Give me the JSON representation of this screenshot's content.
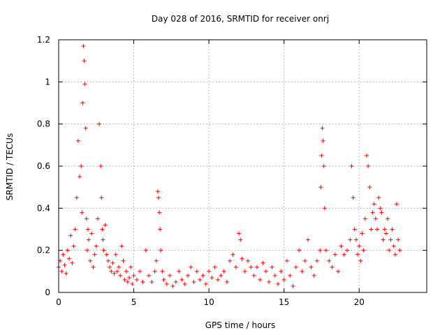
{
  "chart_data": {
    "type": "scatter",
    "title": "Day 028 of 2016, SRMTID for receiver onrj",
    "xlabel": "GPS time / hours",
    "ylabel": "SRMTID / TECUs",
    "xlim": [
      0,
      24.5
    ],
    "ylim": [
      0,
      1.2
    ],
    "x_ticks": [
      "0",
      "5",
      "10",
      "15",
      "20"
    ],
    "x_tick_values": [
      0,
      5,
      10,
      15,
      20
    ],
    "y_ticks": [
      "0",
      "0.2",
      "0.4",
      "0.6",
      "0.8",
      "1",
      "1.2"
    ],
    "y_tick_values": [
      0,
      0.2,
      0.4,
      0.6,
      0.8,
      1.0,
      1.2
    ],
    "grid": true,
    "marker": "+",
    "color": "#ff0000",
    "series": [
      {
        "name": "SRMTID",
        "x": [
          0.0,
          0.1,
          0.2,
          0.3,
          0.4,
          0.5,
          0.6,
          0.7,
          0.8,
          0.9,
          1.0,
          1.1,
          1.2,
          1.3,
          1.4,
          1.5,
          1.55,
          1.6,
          1.65,
          1.7,
          1.75,
          1.8,
          1.85,
          1.9,
          1.95,
          2.0,
          2.1,
          2.2,
          2.3,
          2.4,
          2.5,
          2.6,
          2.7,
          2.8,
          2.85,
          2.9,
          2.95,
          3.0,
          3.1,
          3.2,
          3.3,
          3.4,
          3.5,
          3.6,
          3.7,
          3.8,
          3.9,
          4.0,
          4.1,
          4.2,
          4.3,
          4.4,
          4.5,
          4.6,
          4.7,
          4.8,
          4.9,
          5.0,
          5.2,
          5.4,
          5.6,
          5.8,
          6.0,
          6.2,
          6.4,
          6.5,
          6.6,
          6.65,
          6.7,
          6.75,
          6.8,
          6.9,
          7.0,
          7.2,
          7.4,
          7.6,
          7.8,
          8.0,
          8.2,
          8.4,
          8.6,
          8.8,
          9.0,
          9.2,
          9.4,
          9.6,
          9.8,
          10.0,
          10.2,
          10.4,
          10.6,
          10.8,
          11.0,
          11.2,
          11.4,
          11.6,
          11.8,
          12.0,
          12.1,
          12.2,
          12.4,
          12.6,
          12.8,
          13.0,
          13.2,
          13.4,
          13.6,
          13.8,
          14.0,
          14.2,
          14.4,
          14.6,
          14.8,
          15.0,
          15.2,
          15.4,
          15.6,
          15.8,
          16.0,
          16.2,
          16.4,
          16.6,
          16.8,
          17.0,
          17.2,
          17.4,
          17.45,
          17.5,
          17.55,
          17.6,
          17.65,
          17.7,
          17.8,
          18.0,
          18.2,
          18.4,
          18.6,
          18.8,
          19.0,
          19.2,
          19.4,
          19.5,
          19.6,
          19.7,
          19.8,
          19.9,
          20.0,
          20.1,
          20.2,
          20.3,
          20.4,
          20.5,
          20.6,
          20.7,
          20.8,
          20.9,
          21.0,
          21.1,
          21.2,
          21.3,
          21.4,
          21.5,
          21.6,
          21.7,
          21.8,
          21.9,
          22.0,
          22.1,
          22.2,
          22.3,
          22.4,
          22.5,
          22.6,
          22.7
        ],
        "y": [
          0.12,
          0.15,
          0.1,
          0.18,
          0.13,
          0.09,
          0.2,
          0.16,
          0.27,
          0.14,
          0.22,
          0.3,
          0.45,
          0.72,
          0.55,
          0.6,
          0.38,
          0.9,
          1.17,
          1.1,
          0.99,
          0.78,
          0.35,
          0.2,
          0.3,
          0.25,
          0.15,
          0.28,
          0.12,
          0.18,
          0.22,
          0.35,
          0.8,
          0.6,
          0.45,
          0.3,
          0.25,
          0.2,
          0.32,
          0.18,
          0.15,
          0.12,
          0.1,
          0.14,
          0.09,
          0.18,
          0.1,
          0.12,
          0.08,
          0.22,
          0.15,
          0.06,
          0.1,
          0.05,
          0.07,
          0.12,
          0.04,
          0.08,
          0.06,
          0.1,
          0.05,
          0.2,
          0.08,
          0.05,
          0.1,
          0.15,
          0.48,
          0.45,
          0.38,
          0.3,
          0.2,
          0.1,
          0.06,
          0.04,
          0.08,
          0.03,
          0.05,
          0.1,
          0.06,
          0.04,
          0.08,
          0.12,
          0.05,
          0.1,
          0.06,
          0.08,
          0.04,
          0.1,
          0.07,
          0.12,
          0.06,
          0.08,
          0.1,
          0.05,
          0.15,
          0.18,
          0.12,
          0.28,
          0.25,
          0.16,
          0.1,
          0.15,
          0.12,
          0.08,
          0.12,
          0.06,
          0.14,
          0.1,
          0.05,
          0.12,
          0.08,
          0.04,
          0.1,
          0.06,
          0.15,
          0.08,
          0.03,
          0.12,
          0.2,
          0.1,
          0.15,
          0.25,
          0.12,
          0.08,
          0.15,
          0.2,
          0.5,
          0.65,
          0.78,
          0.72,
          0.6,
          0.4,
          0.2,
          0.15,
          0.12,
          0.18,
          0.1,
          0.22,
          0.18,
          0.2,
          0.25,
          0.6,
          0.45,
          0.3,
          0.25,
          0.18,
          0.22,
          0.15,
          0.28,
          0.2,
          0.35,
          0.65,
          0.6,
          0.5,
          0.3,
          0.38,
          0.42,
          0.35,
          0.3,
          0.45,
          0.4,
          0.38,
          0.25,
          0.3,
          0.28,
          0.35,
          0.2,
          0.25,
          0.3,
          0.22,
          0.18,
          0.42,
          0.25,
          0.2
        ]
      }
    ]
  }
}
